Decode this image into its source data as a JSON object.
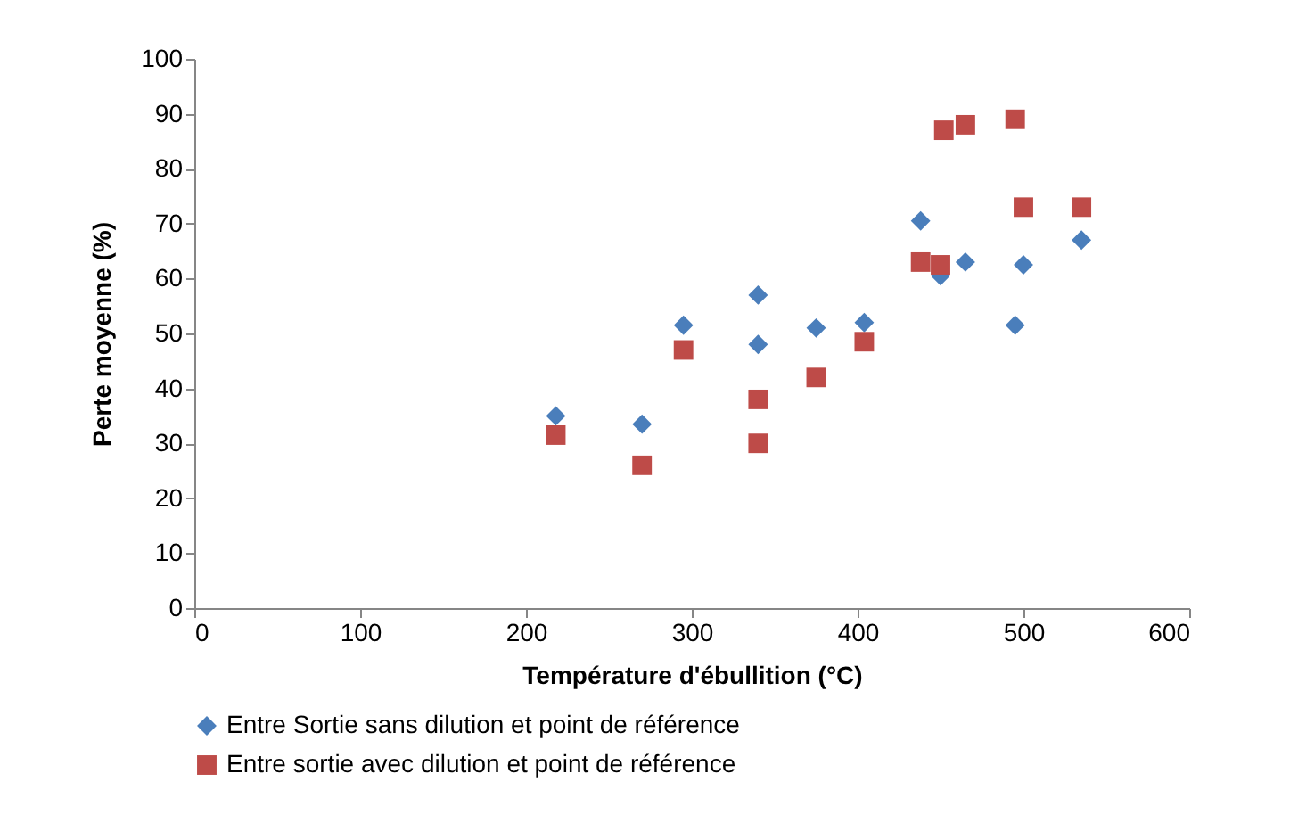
{
  "chart_data": {
    "type": "scatter",
    "xlabel": "Température d'ébullition (°C)",
    "ylabel": "Perte moyenne  (%)",
    "xlim": [
      0,
      600
    ],
    "xticks": [
      0,
      100,
      200,
      300,
      400,
      500,
      600
    ],
    "ylim": [
      0,
      100
    ],
    "yticks": [
      0,
      10,
      20,
      30,
      40,
      50,
      60,
      70,
      80,
      90,
      100
    ],
    "grid": false,
    "legend": "bottom",
    "series": [
      {
        "name": "Entre Sortie sans dilution et point de référence",
        "color": "#4a7ebb",
        "marker": "diamond",
        "x": [
          218,
          270,
          295,
          340,
          340,
          375,
          404,
          438,
          450,
          465,
          495,
          500,
          535
        ],
        "values": [
          35,
          33.5,
          51.5,
          57,
          48,
          51,
          52,
          70.5,
          60.5,
          63,
          51.5,
          62.5,
          67
        ]
      },
      {
        "name": "Entre sortie avec dilution et point de référence",
        "color": "#be4b48",
        "marker": "square",
        "x": [
          218,
          270,
          295,
          340,
          340,
          375,
          404,
          438,
          450,
          452,
          465,
          495,
          500,
          535
        ],
        "values": [
          31.5,
          26,
          47,
          38,
          30,
          42,
          48.5,
          63,
          62.5,
          87,
          88,
          89,
          73,
          73
        ]
      }
    ]
  }
}
